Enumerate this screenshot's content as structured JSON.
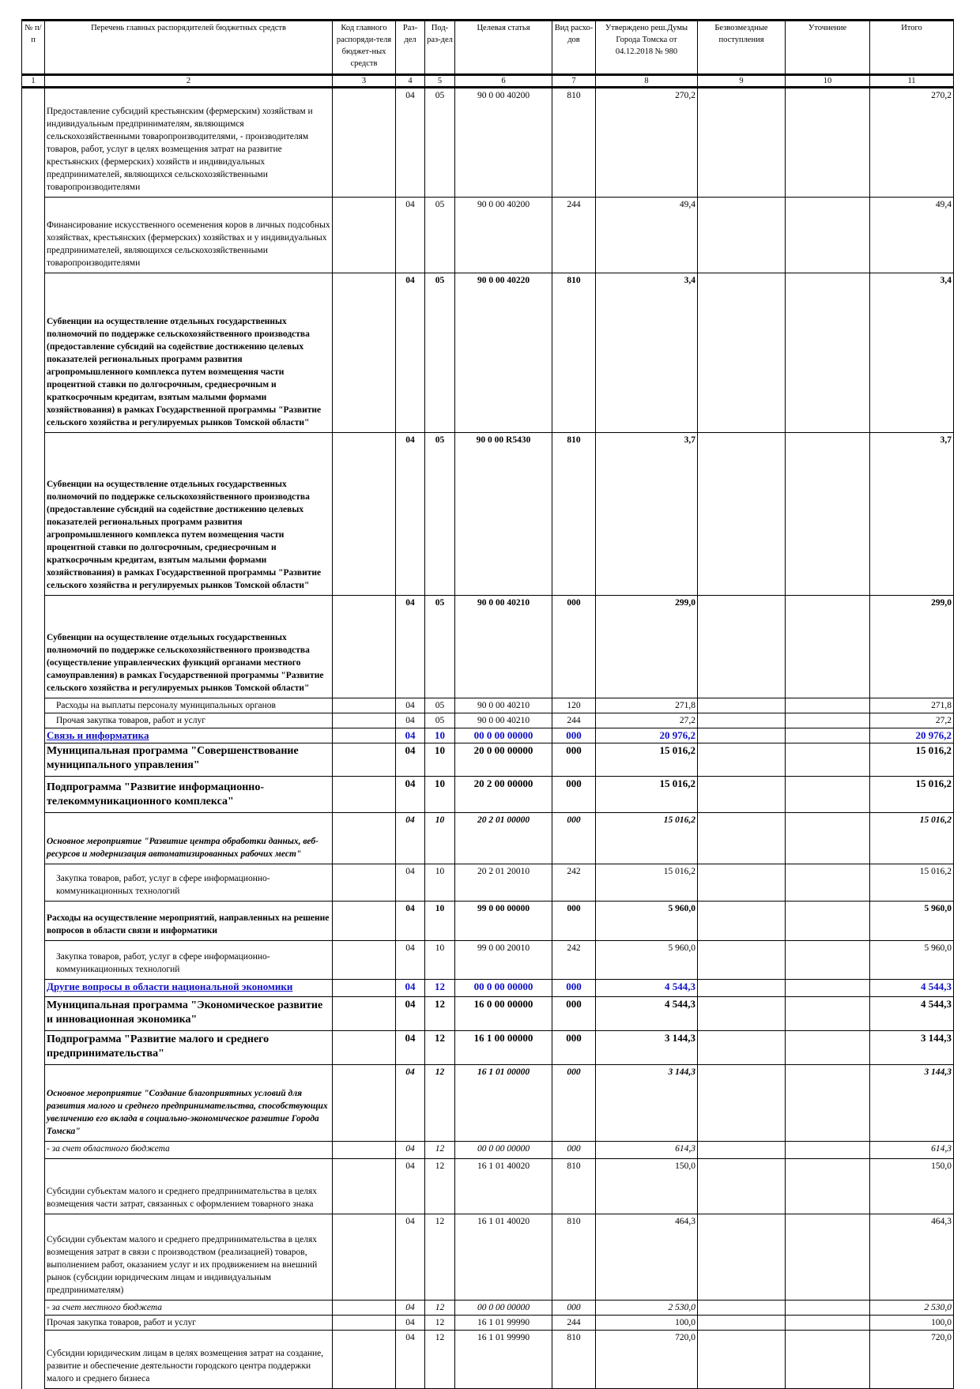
{
  "header": {
    "cols": [
      "№ п/п",
      "Перечень главных распорядителей бюджетных средств",
      "Код главного распоряди-теля бюджет-ных средств",
      "Раз-дел",
      "Под-раз-дел",
      "Целевая статья",
      "Вид расхо-дов",
      "Утверждено реш.Думы Города Томска от 04.12.2018 № 980",
      "Безвозмездные поступления",
      "Уточнение",
      "Итого"
    ],
    "nums": [
      "1",
      "2",
      "3",
      "4",
      "5",
      "6",
      "7",
      "8",
      "9",
      "10",
      "11"
    ]
  },
  "rows": [
    {
      "style": "",
      "h": 135,
      "desc": "Предоставление субсидий крестьянским (фермерским) хозяйствам и индивидуальным предпринимателям, являющимся сельскохозяйственными товаропроизводителями, - производителям товаров, работ, услуг в целях возмещения затрат на развитие крестьянских (фермерских) хозяйств и индивидуальных предпринимателей, являющихся сельскохозяйственными товаропроизводителями",
      "rz": "04",
      "prz": "05",
      "cs": "90 0 00 40200",
      "vr": "810",
      "utv": "270,2",
      "itogo": "270,2"
    },
    {
      "style": "",
      "h": 93,
      "desc": "Финансирование искусственного осеменения коров в личных подсобных хозяйствах, крестьянских (фермерских) хозяйствах и у индивидуальных предпринимателей, являющихся сельскохозяйственными товаропроизводителями",
      "rz": "04",
      "prz": "05",
      "cs": "90 0 00 40200",
      "vr": "244",
      "utv": "49,4",
      "itogo": "49,4"
    },
    {
      "style": "bold",
      "h": 199,
      "desc": "Субвенции на осуществление отдельных государственных полномочий по поддержке сельскохозяйственного производства (предоставление субсидий на содействие достижению целевых показателей региональных программ развития агропромышленного комплекса путем возмещения части процентной ставки по долгосрочным, среднесрочным и краткосрочным кредитам, взятым малыми формами хозяйствования) в рамках Государственной программы \"Развитие сельского хозяйства и регулируемых рынков Томской области\"",
      "rz": "04",
      "prz": "05",
      "cs": "90 0 00 40220",
      "vr": "810",
      "utv": "3,4",
      "itogo": "3,4"
    },
    {
      "style": "bold",
      "h": 203,
      "desc": "Субвенции на осуществление отдельных государственных полномочий по поддержке сельскохозяйственного производства (предоставление субсидий на содействие достижению целевых показателей региональных программ развития агропромышленного комплекса путем возмещения части процентной ставки по долгосрочным, среднесрочным и краткосрочным кредитам, взятым малыми формами хозяйствования) в рамках Государственной программы \"Развитие сельского хозяйства и регулируемых рынков Томской области\"",
      "rz": "04",
      "prz": "05",
      "cs": "90 0 00 R5430",
      "vr": "810",
      "utv": "3,7",
      "itogo": "3,7"
    },
    {
      "style": "bold",
      "h": 127,
      "desc": "Субвенции на осуществление отдельных государственных полномочий по поддержке сельскохозяйственного производства (осуществление управленческих функций органами местного самоуправления) в рамках Государственной программы \"Развитие сельского хозяйства и регулируемых рынков Томской области\"",
      "rz": "04",
      "prz": "05",
      "cs": "90 0 00 40210",
      "vr": "000",
      "utv": "299,0",
      "itogo": "299,0"
    },
    {
      "style": "ind",
      "h": 18,
      "desc": "Расходы на выплаты персоналу муниципальных органов",
      "rz": "04",
      "prz": "05",
      "cs": "90 0 00 40210",
      "vr": "120",
      "utv": "271,8",
      "itogo": "271,8"
    },
    {
      "style": "ind",
      "h": 17,
      "desc": "Прочая закупка товаров, работ и услуг",
      "rz": "04",
      "prz": "05",
      "cs": "90 0 00 40210",
      "vr": "244",
      "utv": "27,2",
      "itogo": "27,2"
    },
    {
      "style": "blue",
      "h": 19,
      "desc": "Связь и информатика",
      "rz": "04",
      "prz": "10",
      "cs": "00 0 00 00000",
      "vr": "000",
      "utv": "20 976,2",
      "itogo": "20 976,2"
    },
    {
      "style": "big",
      "h": 36,
      "desc": "Муниципальная программа \"Совершенствование муниципального управления\"",
      "rz": "04",
      "prz": "10",
      "cs": "20 0 00 00000",
      "vr": "000",
      "utv": "15 016,2",
      "itogo": "15 016,2"
    },
    {
      "style": "big",
      "h": 43,
      "desc": "Подпрограмма \"Развитие информационно-телекоммуникационного комплекса\"",
      "rz": "04",
      "prz": "10",
      "cs": "20 2 00 00000",
      "vr": "000",
      "utv": "15 016,2",
      "itogo": "15 016,2"
    },
    {
      "style": "ibold",
      "h": 62,
      "desc": "Основное мероприятие \"Развитие центра обработки данных, веб-ресурсов и модернизация автоматизированных рабочих мест\"",
      "rz": "04",
      "prz": "10",
      "cs": "20 2 01 00000",
      "vr": "000",
      "utv": "15 016,2",
      "itogo": "15 016,2"
    },
    {
      "style": "ind",
      "h": 44,
      "desc": "Закупка товаров, работ, услуг в сфере информационно-коммуникационных технологий",
      "rz": "04",
      "prz": "10",
      "cs": "20 2 01 20010",
      "vr": "242",
      "utv": "15 016,2",
      "itogo": "15 016,2"
    },
    {
      "style": "bold",
      "h": 47,
      "desc": "Расходы на осуществление мероприятий, направленных на решение вопросов в области связи и информатики",
      "rz": "04",
      "prz": "10",
      "cs": "99 0 00 00000",
      "vr": "000",
      "utv": "5 960,0",
      "itogo": "5 960,0"
    },
    {
      "style": "ind",
      "h": 46,
      "desc": "Закупка товаров, работ, услуг в сфере информационно-коммуникационных технологий",
      "rz": "04",
      "prz": "10",
      "cs": "99 0 00 20010",
      "vr": "242",
      "utv": "5 960,0",
      "itogo": "5 960,0"
    },
    {
      "style": "blue",
      "h": 22,
      "desc": "Другие вопросы в области национальной экономики",
      "rz": "04",
      "prz": "12",
      "cs": "00 0 00 00000",
      "vr": "000",
      "utv": "4 544,3",
      "itogo": "4 544,3"
    },
    {
      "style": "big",
      "h": 40,
      "desc": "Муниципальная программа \"Экономическое развитие и инновационная экономика\"",
      "rz": "04",
      "prz": "12",
      "cs": "16 0 00 00000",
      "vr": "000",
      "utv": "4 544,3",
      "itogo": "4 544,3"
    },
    {
      "style": "big",
      "h": 40,
      "desc": "Подпрограмма \"Развитие малого и среднего предпринимательства\"",
      "rz": "04",
      "prz": "12",
      "cs": "16 1 00 00000",
      "vr": "000",
      "utv": "3 144,3",
      "itogo": "3 144,3"
    },
    {
      "style": "ibold",
      "h": 94,
      "desc": "Основное мероприятие \"Создание благоприятных условий для развития малого и среднего предпринимательства, способствующих увеличению его вклада в социально-экономическое развитие Города Томска\"",
      "rz": "04",
      "prz": "12",
      "cs": "16 1 01 00000",
      "vr": "000",
      "utv": "3 144,3",
      "itogo": "3 144,3"
    },
    {
      "style": "ital",
      "h": 22,
      "desc": " - за счет областного бюджета",
      "rz": "04",
      "prz": "12",
      "cs": "00 0 00 00000",
      "vr": "000",
      "utv": "614,3",
      "itogo": "614,3"
    },
    {
      "style": "",
      "h": 67,
      "desc": "Субсидии субъектам малого и среднего предпринимательства в целях возмещения части затрат, связанных с оформлением товарного знака",
      "rz": "04",
      "prz": "12",
      "cs": "16 1 01 40020",
      "vr": "810",
      "utv": "150,0",
      "itogo": "150,0"
    },
    {
      "style": "",
      "h": 106,
      "desc": "Субсидии субъектам малого и среднего предпринимательства в целях возмещения затрат в связи с производством (реализацией) товаров, выполнением работ, оказанием услуг и их продвижением на внешний рынок (субсидии юридическим лицам и индивидуальным предпринимателям)",
      "rz": "04",
      "prz": "12",
      "cs": "16 1 01 40020",
      "vr": "810",
      "utv": "464,3",
      "itogo": "464,3"
    },
    {
      "style": "ital",
      "h": 17,
      "desc": " - за счет местного бюджета",
      "rz": "04",
      "prz": "12",
      "cs": "00 0 00 00000",
      "vr": "000",
      "utv": "2 530,0",
      "itogo": "2 530,0"
    },
    {
      "style": "",
      "h": 17,
      "desc": "Прочая закупка товаров, работ и услуг",
      "rz": "04",
      "prz": "12",
      "cs": "16 1 01 99990",
      "vr": "244",
      "utv": "100,0",
      "itogo": "100,0"
    },
    {
      "style": "",
      "h": 71,
      "desc": "Субсидии юридическим лицам в целях возмещения затрат на создание, развитие и обеспечение деятельности городского центра поддержки малого и среднего бизнеса",
      "rz": "04",
      "prz": "12",
      "cs": "16 1 01 99990",
      "vr": "810",
      "utv": "720,0",
      "itogo": "720,0"
    }
  ]
}
